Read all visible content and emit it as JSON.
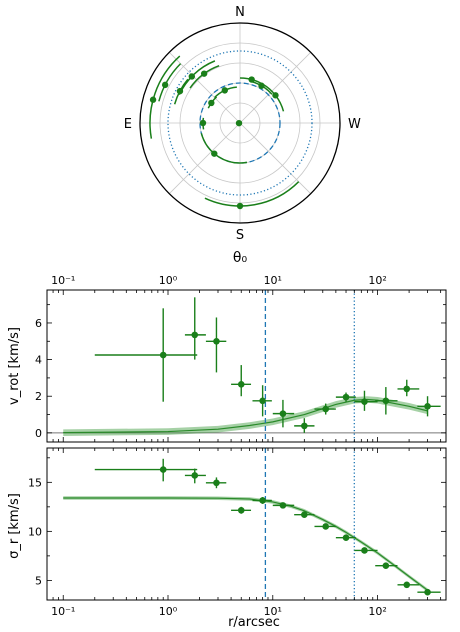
{
  "chart_data": [
    {
      "type": "scatter",
      "subtype": "polar",
      "xlabel": "θ₀",
      "compass": [
        "N",
        "E",
        "S",
        "W"
      ],
      "rings": 5,
      "spokes": 8,
      "reference_circles": [
        {
          "style": "dashed",
          "radius_frac": 0.4,
          "color": "#1f77b4"
        },
        {
          "style": "dotted",
          "radius_frac": 0.72,
          "color": "#1f77b4"
        }
      ],
      "points": [
        {
          "r_frac": 0.01,
          "theta_deg": 170,
          "arc_deg": [
            165,
            178
          ]
        },
        {
          "r_frac": 0.4,
          "theta_deg": 130,
          "arc_deg": [
            80,
            165
          ]
        },
        {
          "r_frac": 0.36,
          "theta_deg": 245,
          "arc_deg": [
            225,
            265
          ]
        },
        {
          "r_frac": 0.35,
          "theta_deg": 215,
          "arc_deg": [
            205,
            228
          ]
        },
        {
          "r_frac": 0.37,
          "theta_deg": 180,
          "arc_deg": [
            170,
            188
          ]
        },
        {
          "r_frac": 0.83,
          "theta_deg": 90,
          "arc_deg": [
            45,
            115
          ]
        },
        {
          "r_frac": 0.45,
          "theta_deg": 322,
          "arc_deg": [
            300,
            345
          ]
        },
        {
          "r_frac": 0.43,
          "theta_deg": 300,
          "arc_deg": [
            285,
            318
          ]
        },
        {
          "r_frac": 0.45,
          "theta_deg": 285,
          "arc_deg": [
            270,
            300
          ]
        },
        {
          "r_frac": 0.61,
          "theta_deg": 234,
          "arc_deg": [
            215,
            250
          ]
        },
        {
          "r_frac": 0.67,
          "theta_deg": 224,
          "arc_deg": [
            205,
            248
          ]
        },
        {
          "r_frac": 0.68,
          "theta_deg": 208,
          "arc_deg": [
            196,
            220
          ]
        },
        {
          "r_frac": 0.84,
          "theta_deg": 207,
          "arc_deg": [
            195,
            225
          ]
        },
        {
          "r_frac": 0.9,
          "theta_deg": 195,
          "arc_deg": [
            170,
            228
          ]
        }
      ]
    },
    {
      "type": "scatter",
      "xscale": "log",
      "xlim": [
        0.07,
        450
      ],
      "ylim": [
        -0.5,
        7.8
      ],
      "ylabel": "v_rot [km/s]",
      "top_xticks": [
        "10⁻¹",
        "10⁰",
        "10¹",
        "10²"
      ],
      "yticks": [
        0,
        2,
        4,
        6
      ],
      "vlines": [
        {
          "x": 8.5,
          "style": "dashed",
          "color": "#1f77b4"
        },
        {
          "x": 60,
          "style": "dotted",
          "color": "#1f77b4"
        }
      ],
      "points": [
        {
          "x": 0.9,
          "y": 4.25,
          "xerr": [
            0.2,
            1.9
          ],
          "yerr": [
            1.7,
            6.8
          ]
        },
        {
          "x": 1.8,
          "y": 5.35,
          "xerr": [
            1.45,
            2.3
          ],
          "yerr": [
            4.0,
            7.4
          ]
        },
        {
          "x": 2.9,
          "y": 5.0,
          "xerr": [
            2.3,
            3.6
          ],
          "yerr": [
            3.3,
            6.3
          ]
        },
        {
          "x": 5.0,
          "y": 2.65,
          "xerr": [
            4.0,
            6.2
          ],
          "yerr": [
            2.0,
            3.7
          ]
        },
        {
          "x": 8.0,
          "y": 1.75,
          "xerr": [
            6.4,
            9.8
          ],
          "yerr": [
            0.9,
            2.6
          ]
        },
        {
          "x": 12.5,
          "y": 1.05,
          "xerr": [
            10.0,
            16.0
          ],
          "yerr": [
            0.3,
            1.8
          ]
        },
        {
          "x": 20.0,
          "y": 0.38,
          "xerr": [
            16.0,
            25.0
          ],
          "yerr": [
            0.0,
            0.8
          ]
        },
        {
          "x": 32.0,
          "y": 1.3,
          "xerr": [
            25.0,
            40.0
          ],
          "yerr": [
            1.0,
            1.6
          ]
        },
        {
          "x": 50.0,
          "y": 1.95,
          "xerr": [
            40.0,
            62.0
          ],
          "yerr": [
            1.7,
            2.2
          ]
        },
        {
          "x": 75.0,
          "y": 1.7,
          "xerr": [
            60.0,
            100.0
          ],
          "yerr": [
            1.2,
            2.3
          ]
        },
        {
          "x": 120.0,
          "y": 1.75,
          "xerr": [
            95.0,
            155.0
          ],
          "yerr": [
            1.0,
            2.5
          ]
        },
        {
          "x": 190.0,
          "y": 2.4,
          "xerr": [
            155.0,
            250.0
          ],
          "yerr": [
            2.0,
            2.9
          ]
        },
        {
          "x": 300.0,
          "y": 1.45,
          "xerr": [
            240.0,
            400.0
          ],
          "yerr": [
            0.9,
            2.0
          ]
        }
      ],
      "model": {
        "x": [
          0.1,
          1,
          3,
          6,
          10,
          20,
          40,
          60,
          80,
          100,
          200,
          300
        ],
        "y": [
          0.01,
          0.07,
          0.2,
          0.4,
          0.6,
          1.0,
          1.55,
          1.78,
          1.82,
          1.78,
          1.45,
          1.2
        ],
        "band": 0.18
      }
    },
    {
      "type": "scatter",
      "xscale": "log",
      "xlim": [
        0.07,
        450
      ],
      "ylim": [
        3,
        18.5
      ],
      "xlabel": "r/arcsec",
      "ylabel": "σ_r [km/s]",
      "xticks": [
        "10⁻¹",
        "10⁰",
        "10¹",
        "10²"
      ],
      "yticks": [
        5,
        10,
        15
      ],
      "vlines": [
        {
          "x": 8.5,
          "style": "dashed",
          "color": "#1f77b4"
        },
        {
          "x": 60,
          "style": "dotted",
          "color": "#1f77b4"
        }
      ],
      "points": [
        {
          "x": 0.9,
          "y": 16.3,
          "xerr": [
            0.2,
            1.9
          ],
          "yerr": [
            15.1,
            17.4
          ]
        },
        {
          "x": 1.8,
          "y": 15.7,
          "xerr": [
            1.45,
            2.3
          ],
          "yerr": [
            14.9,
            16.4
          ]
        },
        {
          "x": 2.9,
          "y": 14.95,
          "xerr": [
            2.3,
            3.6
          ],
          "yerr": [
            14.4,
            15.5
          ]
        },
        {
          "x": 5.0,
          "y": 12.15,
          "xerr": [
            4.0,
            6.2
          ],
          "yerr": [
            11.8,
            12.5
          ]
        },
        {
          "x": 8.0,
          "y": 13.15,
          "xerr": [
            6.4,
            9.8
          ],
          "yerr": [
            12.8,
            13.5
          ]
        },
        {
          "x": 12.5,
          "y": 12.65,
          "xerr": [
            10.0,
            16.0
          ],
          "yerr": [
            12.4,
            12.9
          ]
        },
        {
          "x": 20.0,
          "y": 11.7,
          "xerr": [
            16.0,
            25.0
          ],
          "yerr": [
            11.5,
            11.9
          ]
        },
        {
          "x": 32.0,
          "y": 10.5,
          "xerr": [
            25.0,
            40.0
          ],
          "yerr": [
            10.3,
            10.7
          ]
        },
        {
          "x": 50.0,
          "y": 9.35,
          "xerr": [
            40.0,
            62.0
          ],
          "yerr": [
            9.1,
            9.6
          ]
        },
        {
          "x": 75.0,
          "y": 8.05,
          "xerr": [
            60.0,
            100.0
          ],
          "yerr": [
            7.8,
            8.3
          ]
        },
        {
          "x": 120.0,
          "y": 6.5,
          "xerr": [
            95.0,
            155.0
          ],
          "yerr": [
            6.2,
            6.8
          ]
        },
        {
          "x": 190.0,
          "y": 4.55,
          "xerr": [
            155.0,
            250.0
          ],
          "yerr": [
            4.3,
            4.8
          ]
        },
        {
          "x": 300.0,
          "y": 3.8,
          "xerr": [
            240.0,
            400.0
          ],
          "yerr": [
            3.6,
            4.0
          ]
        }
      ],
      "model": {
        "x": [
          0.1,
          1,
          3,
          6,
          10,
          15,
          20,
          30,
          40,
          50,
          70,
          100,
          150,
          200,
          300
        ],
        "y": [
          13.4,
          13.4,
          13.38,
          13.3,
          13.0,
          12.55,
          12.1,
          11.2,
          10.5,
          9.9,
          8.9,
          7.8,
          6.4,
          5.4,
          4.0
        ],
        "band": 0.18
      }
    }
  ]
}
